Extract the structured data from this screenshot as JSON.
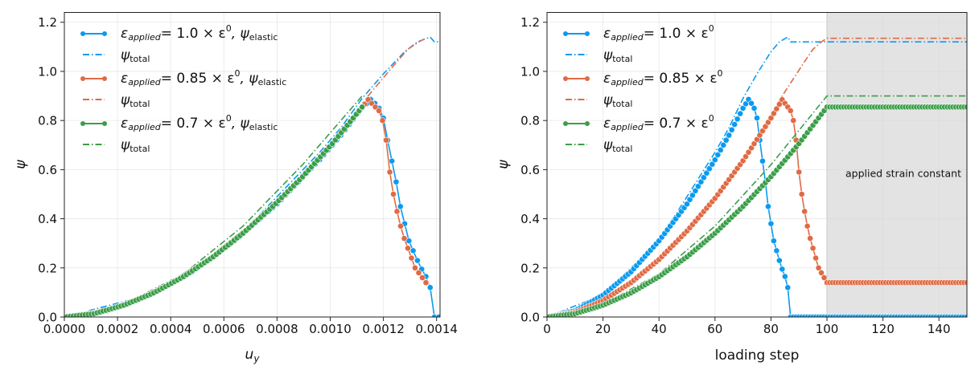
{
  "chart_data": [
    {
      "type": "line",
      "ylabel": "ψ",
      "xlabel_main": "u",
      "xlabel_sub": "y",
      "xlim": [
        0,
        0.001413
      ],
      "ylim": [
        0,
        1.24
      ],
      "xticks": [
        "0.0000",
        "0.0002",
        "0.0004",
        "0.0006",
        "0.0008",
        "0.0010",
        "0.0012",
        "0.0014"
      ],
      "xtick_values": [
        0,
        0.0002,
        0.0004,
        0.0006,
        0.0008,
        0.001,
        0.0012,
        0.0014
      ],
      "yticks": [
        "0.0",
        "0.2",
        "0.4",
        "0.6",
        "0.8",
        "1.0",
        "1.2"
      ],
      "ytick_values": [
        0,
        0.2,
        0.4,
        0.6,
        0.8,
        1.0,
        1.2
      ],
      "grid": true,
      "legend_position": "top-left",
      "uy_per_step_unit_strain": 1.6e-05,
      "legend": [
        {
          "eps": "ε",
          "sub": "applied",
          "mid": "= 1.0 × ε",
          "sup": "0",
          "tail": ", ψ",
          "tailsub": "elastic"
        },
        {
          "psi": "ψ",
          "sub": "total"
        },
        {
          "eps": "ε",
          "sub": "applied",
          "mid": "= 0.85 × ε",
          "sup": "0",
          "tail": ", ψ",
          "tailsub": "elastic"
        },
        {
          "psi": "ψ",
          "sub": "total"
        },
        {
          "eps": "ε",
          "sub": "applied",
          "mid": "= 0.7 × ε",
          "sup": "0",
          "tail": ", ψ",
          "tailsub": "elastic"
        },
        {
          "psi": "ψ",
          "sub": "total"
        }
      ]
    },
    {
      "type": "line",
      "ylabel": "ψ",
      "xlabel": "loading step",
      "xlim": [
        0,
        150
      ],
      "ylim": [
        0,
        1.24
      ],
      "xticks": [
        "0",
        "20",
        "40",
        "60",
        "80",
        "100",
        "120",
        "140"
      ],
      "xtick_values": [
        0,
        20,
        40,
        60,
        80,
        100,
        120,
        140
      ],
      "yticks": [
        "0.0",
        "0.2",
        "0.4",
        "0.6",
        "0.8",
        "1.0",
        "1.2"
      ],
      "ytick_values": [
        0,
        0.2,
        0.4,
        0.6,
        0.8,
        1.0,
        1.2
      ],
      "grid": true,
      "legend_position": "top-left",
      "shaded_region": {
        "x": [
          100,
          150
        ],
        "label": "applied strain constant",
        "color": "#e3e3e3"
      },
      "legend": [
        {
          "eps": "ε",
          "sub": "applied",
          "mid": "= 1.0 × ε",
          "sup": "0"
        },
        {
          "psi": "ψ",
          "sub": "total"
        },
        {
          "eps": "ε",
          "sub": "applied",
          "mid": "= 0.85 × ε",
          "sup": "0"
        },
        {
          "psi": "ψ",
          "sub": "total"
        },
        {
          "eps": "ε",
          "sub": "applied",
          "mid": "= 0.7 × ε",
          "sup": "0"
        },
        {
          "psi": "ψ",
          "sub": "total"
        }
      ]
    }
  ],
  "series": [
    {
      "name": "ε_applied = 1.0 × ε0",
      "strain_factor": 1.0,
      "color": "#0a9af0",
      "elastic": {
        "x": [
          0,
          10,
          20,
          30,
          40,
          50,
          60,
          65,
          70,
          72,
          73,
          74,
          75,
          76,
          77,
          78,
          79,
          80,
          81,
          82,
          83,
          84,
          85,
          86,
          87,
          150
        ],
        "y": [
          0,
          0.025,
          0.089,
          0.184,
          0.31,
          0.46,
          0.64,
          0.74,
          0.85,
          0.886,
          0.87,
          0.85,
          0.81,
          0.72,
          0.635,
          0.55,
          0.45,
          0.38,
          0.31,
          0.27,
          0.23,
          0.195,
          0.165,
          0.12,
          0,
          0
        ]
      },
      "total": {
        "x": [
          0,
          20,
          40,
          60,
          65,
          70,
          75,
          80,
          83,
          86,
          87,
          150
        ],
        "y": [
          0,
          0.09,
          0.31,
          0.67,
          0.77,
          0.89,
          0.99,
          1.08,
          1.12,
          1.14,
          1.12,
          1.12
        ]
      }
    },
    {
      "name": "ε_applied = 0.85 × ε0",
      "strain_factor": 0.85,
      "color": "#e06a44",
      "elastic": {
        "x": [
          0,
          10,
          20,
          30,
          40,
          50,
          60,
          70,
          80,
          84,
          85,
          86,
          87,
          88,
          89,
          90,
          91,
          92,
          93,
          94,
          95,
          96,
          97,
          98,
          99,
          100,
          150
        ],
        "y": [
          0,
          0.019,
          0.067,
          0.14,
          0.234,
          0.35,
          0.483,
          0.636,
          0.81,
          0.885,
          0.87,
          0.855,
          0.84,
          0.8,
          0.72,
          0.59,
          0.5,
          0.43,
          0.37,
          0.32,
          0.28,
          0.24,
          0.2,
          0.18,
          0.16,
          0.14,
          0.14
        ]
      },
      "total": {
        "x": [
          0,
          20,
          40,
          60,
          70,
          80,
          84,
          88,
          92,
          95,
          98,
          100,
          150
        ],
        "y": [
          0,
          0.065,
          0.23,
          0.48,
          0.64,
          0.82,
          0.9,
          0.97,
          1.04,
          1.09,
          1.12,
          1.135,
          1.135
        ]
      }
    },
    {
      "name": "ε_applied = 0.7 × ε0",
      "strain_factor": 0.7,
      "color": "#3a9e48",
      "elastic": {
        "x": [
          0,
          10,
          20,
          30,
          40,
          50,
          60,
          70,
          80,
          90,
          100,
          150
        ],
        "y": [
          0,
          0.0136,
          0.048,
          0.098,
          0.164,
          0.245,
          0.341,
          0.45,
          0.571,
          0.706,
          0.855,
          0.855
        ]
      },
      "total": {
        "x": [
          0,
          20,
          40,
          60,
          80,
          90,
          100,
          150
        ],
        "y": [
          0,
          0.052,
          0.175,
          0.37,
          0.62,
          0.76,
          0.9,
          0.9
        ]
      }
    }
  ]
}
